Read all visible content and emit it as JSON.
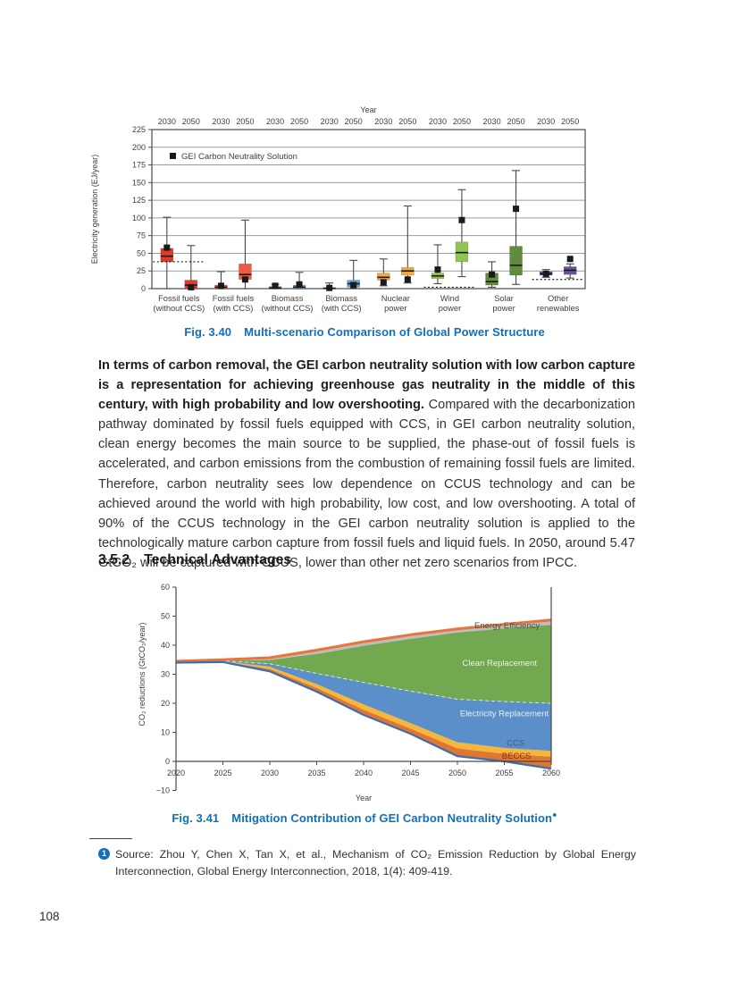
{
  "page": {
    "number": "108"
  },
  "figure1_caption": {
    "label": "Fig. 3.40",
    "title": "Multi-scenario Comparison of Global Power Structure"
  },
  "figure2_caption": {
    "label": "Fig. 3.41",
    "title": "Mitigation Contribution of GEI Carbon Neutrality Solution",
    "footnote_symbol": "●"
  },
  "paragraph": {
    "bold_sentence": "In terms of carbon removal, the GEI carbon neutrality solution with low carbon capture is a representation for achieving greenhouse gas neutrality in the middle of this century, with high probability and low overshooting.",
    "rest": " Compared with the decarbonization pathway dominated by fossil fuels equipped with CCS, in GEI carbon neutrality solution, clean energy becomes the main source to be supplied, the phase-out of fossil fuels is accelerated, and carbon emissions from the combustion of remaining fossil fuels are limited. Therefore, carbon neutrality sees low dependence on CCUS technology and can be achieved around the world with high probability, low cost, and low overshooting. A total of 90% of the CCUS technology in the GEI carbon neutrality solution is applied to the technologically mature carbon capture from fossil fuels and liquid fuels. In 2050, around 5.47 GtCO₂ will be captured with CCUS, lower than other net zero scenarios from IPCC."
  },
  "heading": {
    "number": "3.5.2",
    "title": "Technical Advantages"
  },
  "footnote": {
    "marker": "1",
    "text": "Source: Zhou Y, Chen X, Tan X, et al., Mechanism of CO₂ Emission Reduction by Global Energy Interconnection, Global Energy Interconnection, 2018, 1(4): 409-419."
  },
  "chart_data": [
    {
      "type": "box",
      "top_axis_label": "Year",
      "ylabel": "Electricity generation (EJ/year)",
      "ylim": [
        0,
        225
      ],
      "ytick_step": 25,
      "grid": true,
      "legend": {
        "label": "GEI Carbon Neutrality Solution",
        "marker_color": "#1a1a1a",
        "position": "top-left-inside"
      },
      "box_years": [
        "2030",
        "2050"
      ],
      "groups": [
        {
          "label1": "Fossil fuels",
          "label2": "(without CCS)",
          "color": "#e03a2c",
          "ref_line": 38,
          "boxes": [
            {
              "year": "2030",
              "lo": 0,
              "q1": 38,
              "med": 46,
              "q3": 57,
              "hi": 101,
              "gei": 58
            },
            {
              "year": "2050",
              "lo": 0,
              "q1": 0,
              "med": 5,
              "q3": 12,
              "hi": 61,
              "gei": 2
            }
          ]
        },
        {
          "label1": "Fossil fuels",
          "label2": "(with CCS)",
          "color": "#ef5b41",
          "ref_line": null,
          "boxes": [
            {
              "year": "2030",
              "lo": 0,
              "q1": 0,
              "med": 2,
              "q3": 5,
              "hi": 24,
              "gei": 4
            },
            {
              "year": "2050",
              "lo": 0,
              "q1": 13,
              "med": 20,
              "q3": 35,
              "hi": 97,
              "gei": 13
            }
          ]
        },
        {
          "label1": "Biomass",
          "label2": "(without CCS)",
          "color": "#63a0d4",
          "ref_line": null,
          "boxes": [
            {
              "year": "2030",
              "lo": 0,
              "q1": 0,
              "med": 1,
              "q3": 3,
              "hi": 6,
              "gei": 4
            },
            {
              "year": "2050",
              "lo": 0,
              "q1": 0,
              "med": 2,
              "q3": 5,
              "hi": 23,
              "gei": 6
            }
          ]
        },
        {
          "label1": "Biomass",
          "label2": "(with CCS)",
          "color": "#63a0d4",
          "ref_line": null,
          "boxes": [
            {
              "year": "2030",
              "lo": 0,
              "q1": 0,
              "med": 0.5,
              "q3": 1.5,
              "hi": 8,
              "gei": 1
            },
            {
              "year": "2050",
              "lo": 0,
              "q1": 2,
              "med": 7,
              "q3": 12,
              "hi": 40,
              "gei": 5
            }
          ]
        },
        {
          "label1": "Nuclear",
          "label2": "power",
          "color": "#f2a93b",
          "ref_line": null,
          "boxes": [
            {
              "year": "2030",
              "lo": 4,
              "q1": 12,
              "med": 16,
              "q3": 22,
              "hi": 42,
              "gei": 9
            },
            {
              "year": "2050",
              "lo": 8,
              "q1": 19,
              "med": 25,
              "q3": 30,
              "hi": 117,
              "gei": 13
            }
          ]
        },
        {
          "label1": "Wind",
          "label2": "power",
          "color": "#93c353",
          "ref_line": 2,
          "boxes": [
            {
              "year": "2030",
              "lo": 7,
              "q1": 14,
              "med": 18,
              "q3": 22,
              "hi": 62,
              "gei": 27
            },
            {
              "year": "2050",
              "lo": 17,
              "q1": 38,
              "med": 51,
              "q3": 66,
              "hi": 140,
              "gei": 97
            }
          ]
        },
        {
          "label1": "Solar",
          "label2": "power",
          "color": "#618c3c",
          "ref_line": null,
          "boxes": [
            {
              "year": "2030",
              "lo": 2,
              "q1": 5,
              "med": 10,
              "q3": 22,
              "hi": 38,
              "gei": 20
            },
            {
              "year": "2050",
              "lo": 6,
              "q1": 19,
              "med": 33,
              "q3": 60,
              "hi": 167,
              "gei": 113
            }
          ]
        },
        {
          "label1": "Other",
          "label2": "renewables",
          "color": "#6f4fa0",
          "ref_line": 13,
          "boxes": [
            {
              "year": "2030",
              "lo": 16,
              "q1": 19,
              "med": 21,
              "q3": 24,
              "hi": 27,
              "gei": 21
            },
            {
              "year": "2050",
              "lo": 15,
              "q1": 20,
              "med": 26,
              "q3": 31,
              "hi": 35,
              "gei": 42
            }
          ]
        }
      ]
    },
    {
      "type": "area",
      "xlabel": "Year",
      "ylabel": "CO₂ reductions (GtCO₂/year)",
      "xlim": [
        2020,
        2060
      ],
      "ylim": [
        -10,
        60
      ],
      "xtick_step": 5,
      "ytick_step": 10,
      "grid": false,
      "x": [
        2020,
        2025,
        2030,
        2035,
        2040,
        2045,
        2050,
        2055,
        2060
      ],
      "baseline": [
        34,
        34.2,
        31,
        24,
        16,
        9.5,
        1.8,
        0,
        -2.5
      ],
      "layers": [
        {
          "name": "BECCS",
          "fill": "#e0772e",
          "top": [
            34.1,
            34.35,
            31.8,
            25.3,
            17.8,
            11.3,
            4.5,
            2.6,
            1.6
          ],
          "label": {
            "x": 2056.3,
            "y": 1.0,
            "color": "#8a2f1d"
          }
        },
        {
          "name": "CCS",
          "fill": "#f5b63d",
          "top": [
            34.2,
            34.5,
            32.6,
            26.6,
            19.6,
            13.2,
            6.6,
            4.6,
            3.6
          ],
          "label": {
            "x": 2056.2,
            "y": 5.4,
            "color": "#44597a"
          }
        },
        {
          "name": "Electricity Replacement",
          "fill": "#5b8fc9",
          "top": [
            34.3,
            34.65,
            33.6,
            30.3,
            27.2,
            24.2,
            21.4,
            20.6,
            20
          ],
          "label": {
            "x": 2055,
            "y": 15.5,
            "color": "#e9f0f7"
          }
        },
        {
          "name": "Clean Replacement",
          "fill": "#71a850",
          "top": [
            34.4,
            34.8,
            34.9,
            37,
            39.8,
            42.2,
            44.4,
            45.8,
            47
          ],
          "label": {
            "x": 2054.5,
            "y": 33,
            "color": "#edf3e8"
          }
        },
        {
          "name": "Energy Efficiency",
          "fill": "#bdbdbd",
          "top": [
            34.5,
            35,
            35.7,
            38.3,
            41.2,
            43.6,
            45.6,
            47.2,
            48.7
          ],
          "label": {
            "x": 2055.3,
            "y": 45.8,
            "color": "#4f4f4f"
          }
        }
      ],
      "top_line_color": "#e8743a",
      "bottom_line_color": "#3e6cb3"
    }
  ]
}
